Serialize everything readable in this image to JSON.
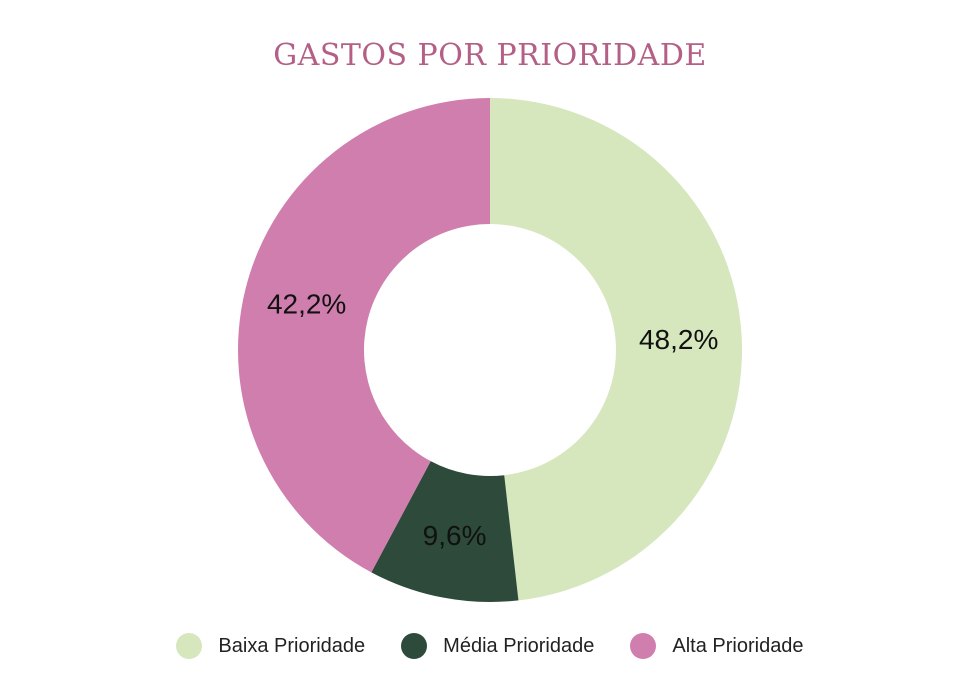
{
  "chart_data": {
    "type": "pie",
    "title": "GASTOS POR PRIORIDADE",
    "categories": [
      "Baixa Prioridade",
      "Média Prioridade",
      "Alta Prioridade"
    ],
    "values": [
      48.2,
      9.6,
      42.2
    ],
    "data_labels": [
      "48,2%",
      "9,6%",
      "42,2%"
    ],
    "colors": [
      "#d6e6bd",
      "#2d4a3a",
      "#d07eae"
    ],
    "legend_position": "bottom",
    "donut": true
  }
}
